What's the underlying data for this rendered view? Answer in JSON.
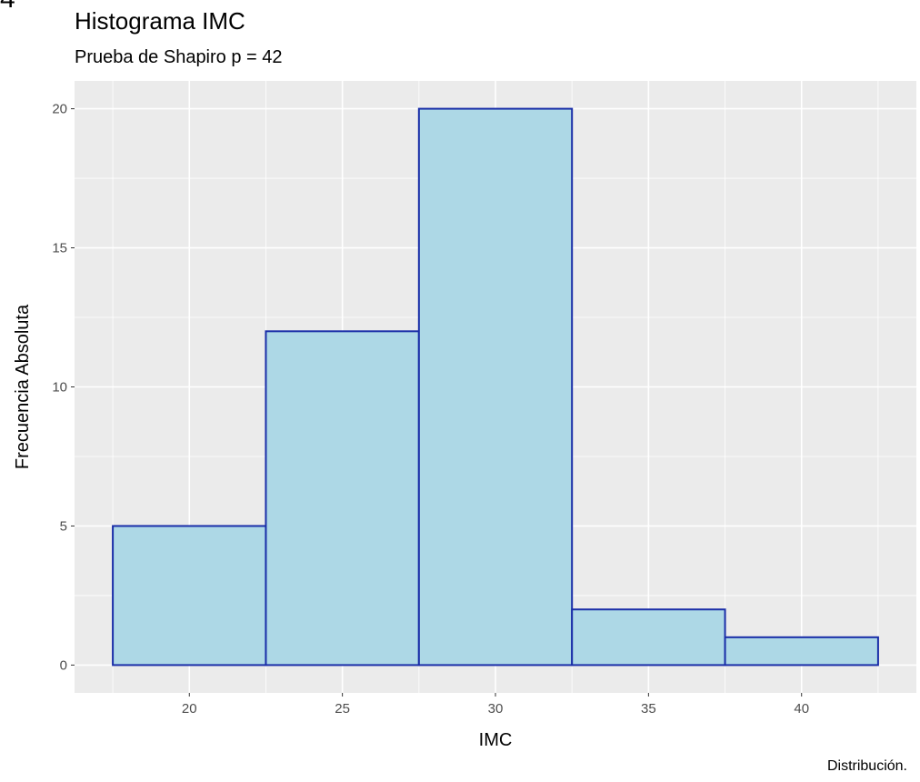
{
  "figure_tag": "4",
  "chart_data": {
    "type": "bar",
    "title": "Histograma IMC",
    "subtitle": "Prueba de Shapiro p = 42",
    "caption": "Distribución.",
    "xlabel": "IMC",
    "ylabel": "Frecuencia Absoluta",
    "bins": [
      {
        "start": 17.5,
        "end": 22.5,
        "count": 5
      },
      {
        "start": 22.5,
        "end": 27.5,
        "count": 12
      },
      {
        "start": 27.5,
        "end": 32.5,
        "count": 20
      },
      {
        "start": 32.5,
        "end": 37.5,
        "count": 2
      },
      {
        "start": 37.5,
        "end": 42.5,
        "count": 1
      }
    ],
    "xlim": [
      16.25,
      43.75
    ],
    "ylim": [
      -1,
      21
    ],
    "x_ticks": [
      20,
      25,
      30,
      35,
      40
    ],
    "y_ticks": [
      0,
      5,
      10,
      15,
      20
    ],
    "grid": true,
    "colors": {
      "panel": "#ebebeb",
      "grid": "#ffffff",
      "fill": "#add8e6",
      "stroke": "#1a2ea8",
      "tick_text": "#4d4d4d"
    }
  }
}
